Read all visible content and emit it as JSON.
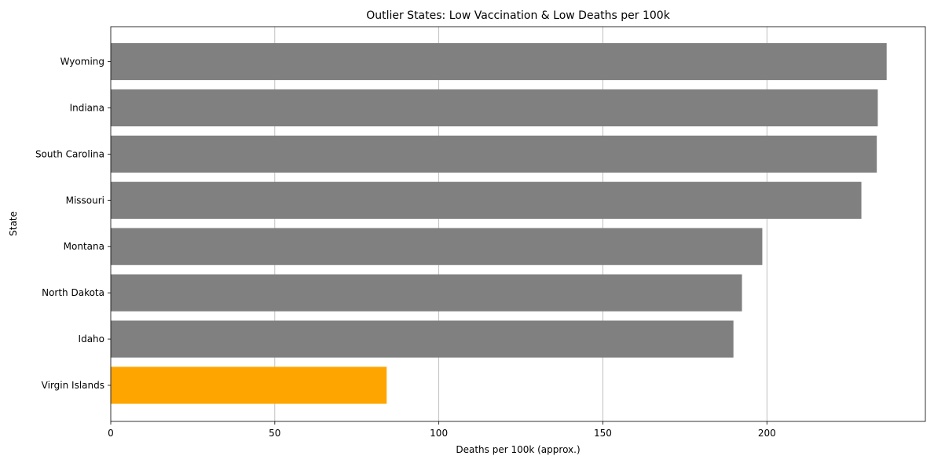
{
  "chart_data": {
    "type": "bar",
    "orientation": "horizontal",
    "title": "Outlier States: Low Vaccination & Low Deaths per 100k",
    "xlabel": "Deaths per 100k (approx.)",
    "ylabel": "State",
    "categories": [
      "Wyoming",
      "Indiana",
      "South Carolina",
      "Missouri",
      "Montana",
      "North Dakota",
      "Idaho",
      "Virgin Islands"
    ],
    "values": [
      236.5,
      233.8,
      233.5,
      228.8,
      198.6,
      192.4,
      189.8,
      84.1
    ],
    "bar_colors": [
      "#808080",
      "#808080",
      "#808080",
      "#808080",
      "#808080",
      "#808080",
      "#808080",
      "#ffa500"
    ],
    "xlim": [
      0,
      248.3
    ],
    "xticks": [
      0,
      50,
      100,
      150,
      200
    ],
    "grid": "x"
  }
}
